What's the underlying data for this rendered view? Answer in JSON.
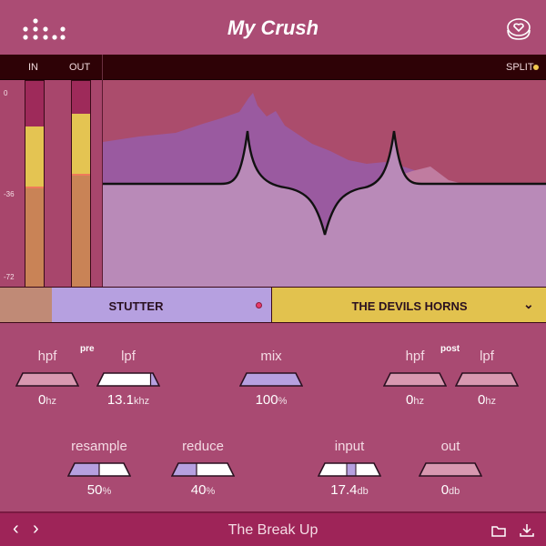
{
  "header": {
    "title": "My Crush",
    "logo_icon": "dots-logo-icon",
    "heart_icon": "heart-stack-icon"
  },
  "topbar": {
    "in_label": "IN",
    "out_label": "OUT",
    "split_label": "SPLIT",
    "split_indicator_color": "#f0c850"
  },
  "meters": {
    "scale": [
      "0",
      "-36",
      "-72"
    ],
    "in_level_db": -24,
    "out_level_db": -18
  },
  "strip": {
    "mode_label": "STUTTER",
    "preset_label": "THE DEVILS HORNS",
    "colors": {
      "left": "#c08a76",
      "mode": "#b6a0e0",
      "preset": "#e2c24e"
    },
    "dot_color": "#e83a6a"
  },
  "controls": {
    "pre_label": "pre",
    "post_label": "post",
    "row1": [
      {
        "label": "hpf",
        "value": "0",
        "unit": "hz",
        "fill": 0,
        "style": "off"
      },
      {
        "label": "lpf",
        "value": "13.1",
        "unit": "khz",
        "fill": 0.85,
        "style": "white-lav"
      },
      {
        "label": "mix",
        "value": "100",
        "unit": "%",
        "fill": 1,
        "style": "lav"
      },
      {
        "label": "hpf",
        "value": "0",
        "unit": "hz",
        "fill": 0,
        "style": "off"
      },
      {
        "label": "lpf",
        "value": "0",
        "unit": "hz",
        "fill": 0,
        "style": "off"
      }
    ],
    "row2": [
      {
        "label": "resample",
        "value": "50",
        "unit": "%",
        "fill": 0.5,
        "style": "lav-white"
      },
      {
        "label": "reduce",
        "value": "40",
        "unit": "%",
        "fill": 0.4,
        "style": "lav-white"
      },
      {
        "label": "input",
        "value": "17.4",
        "unit": "db",
        "fill": 0.5,
        "style": "marker"
      },
      {
        "label": "out",
        "value": "0",
        "unit": "db",
        "fill": 0,
        "style": "off"
      }
    ]
  },
  "footer": {
    "preset_name": "The Break Up",
    "prev_icon": "chevron-left-icon",
    "next_icon": "chevron-right-icon",
    "folder_icon": "folder-icon",
    "download_icon": "download-icon"
  }
}
